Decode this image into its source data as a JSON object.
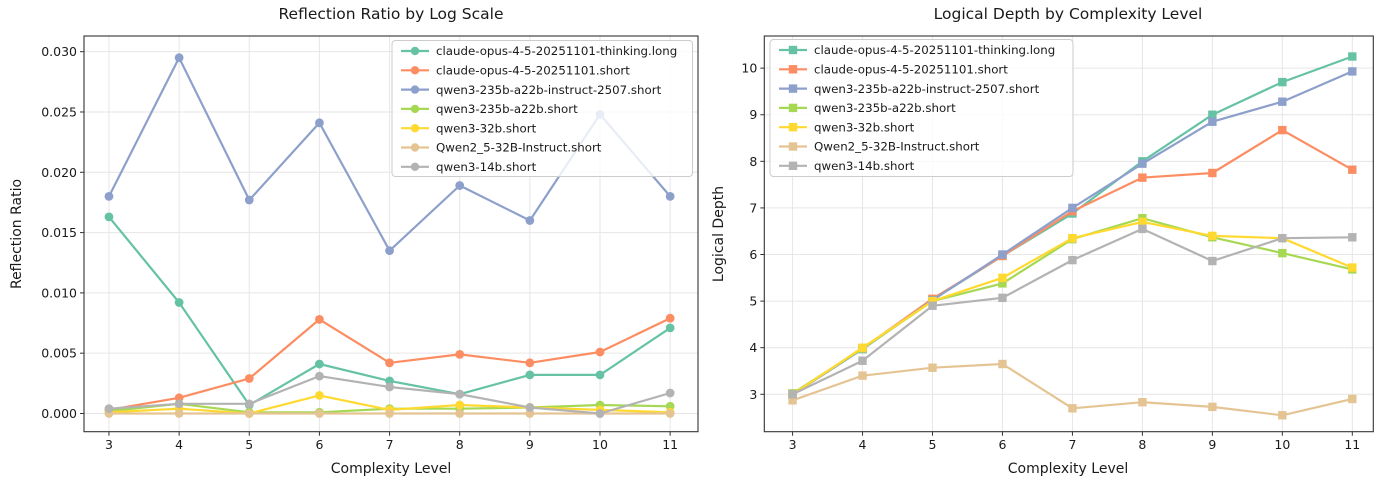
{
  "figure": {
    "background": "#ffffff",
    "text_color": "#1a1a1a",
    "grid_color": "#e6e6e6",
    "spine_color": "#333333",
    "legend_border_color": "#cccccc"
  },
  "chart_data": [
    {
      "type": "line",
      "title": "Reflection Ratio by Log Scale",
      "xlabel": "Complexity Level",
      "ylabel": "Reflection Ratio",
      "grid": true,
      "marker": "o",
      "legend_position": "upper right",
      "x": [
        3,
        4,
        5,
        6,
        7,
        8,
        9,
        10,
        11
      ],
      "xtick_labels": [
        "3",
        "4",
        "5",
        "6",
        "7",
        "8",
        "9",
        "10",
        "11"
      ],
      "yticks": {
        "values": [
          0,
          0.005,
          0.01,
          0.015,
          0.02,
          0.025,
          0.03
        ],
        "labels": [
          "0.000",
          "0.005",
          "0.010",
          "0.015",
          "0.020",
          "0.025",
          "0.030"
        ]
      },
      "xlim": [
        2.644,
        11.397
      ],
      "ylim": [
        -0.00151,
        0.0313
      ],
      "series": [
        {
          "name": "claude-opus-4-5-20251101-thinking.long",
          "color": "#66c2a5",
          "values": [
            0.0163,
            0.0092,
            0.0007,
            0.0041,
            0.0027,
            0.0016,
            0.0032,
            0.0032,
            0.0071
          ]
        },
        {
          "name": "claude-opus-4-5-20251101.short",
          "color": "#fc8d62",
          "values": [
            0.0003,
            0.0013,
            0.0029,
            0.0078,
            0.0042,
            0.0049,
            0.0042,
            0.0051,
            0.0079
          ]
        },
        {
          "name": "qwen3-235b-a22b-instruct-2507.short",
          "color": "#8da0cb",
          "values": [
            0.018,
            0.0295,
            0.0177,
            0.0241,
            0.0135,
            0.0189,
            0.016,
            0.0248,
            0.018
          ]
        },
        {
          "name": "qwen3-235b-a22b.short",
          "color": "#a6d854",
          "values": [
            0.0002,
            0.0008,
            0.0001,
            0.0001,
            0.0004,
            0.0004,
            0.0005,
            0.0007,
            0.0006
          ]
        },
        {
          "name": "qwen3-32b.short",
          "color": "#ffd92f",
          "values": [
            0.0001,
            0.0004,
            0.0,
            0.0015,
            0.0003,
            0.0007,
            0.0005,
            0.0003,
            0.0001
          ]
        },
        {
          "name": "Qwen2_5-32B-Instruct.short",
          "color": "#e5c494",
          "values": [
            0.0,
            0.0,
            0.0,
            0.0,
            0.0,
            0.0,
            0.0,
            0.0,
            0.0
          ]
        },
        {
          "name": "qwen3-14b.short",
          "color": "#b3b3b3",
          "values": [
            0.0004,
            0.0008,
            0.0008,
            0.0031,
            0.0022,
            0.0016,
            0.0005,
            0.0,
            0.0017
          ]
        }
      ]
    },
    {
      "type": "line",
      "title": "Logical Depth by Complexity Level",
      "xlabel": "Complexity Level",
      "ylabel": "Logical Depth",
      "grid": true,
      "marker": "s",
      "legend_position": "upper left",
      "x": [
        3,
        4,
        5,
        6,
        7,
        8,
        9,
        10,
        11
      ],
      "xtick_labels": [
        "3",
        "4",
        "5",
        "6",
        "7",
        "8",
        "9",
        "10",
        "11"
      ],
      "yticks": {
        "values": [
          3,
          4,
          5,
          6,
          7,
          8,
          9,
          10
        ],
        "labels": [
          "3",
          "4",
          "5",
          "6",
          "7",
          "8",
          "9",
          "10"
        ]
      },
      "xlim": [
        2.596,
        11.3
      ],
      "ylim": [
        2.197,
        10.69
      ],
      "series": [
        {
          "name": "claude-opus-4-5-20251101-thinking.long",
          "color": "#66c2a5",
          "values": [
            3.0,
            3.97,
            5.03,
            5.97,
            6.88,
            8.0,
            9.0,
            9.7,
            10.25
          ]
        },
        {
          "name": "claude-opus-4-5-20251101.short",
          "color": "#fc8d62",
          "values": [
            3.0,
            3.98,
            5.05,
            5.97,
            6.93,
            7.65,
            7.75,
            8.67,
            7.82
          ]
        },
        {
          "name": "qwen3-235b-a22b-instruct-2507.short",
          "color": "#8da0cb",
          "values": [
            3.0,
            3.97,
            5.02,
            6.0,
            7.0,
            7.95,
            8.85,
            9.28,
            9.93
          ]
        },
        {
          "name": "qwen3-235b-a22b.short",
          "color": "#a6d854",
          "values": [
            3.02,
            3.98,
            5.0,
            5.38,
            6.33,
            6.78,
            6.37,
            6.03,
            5.68
          ]
        },
        {
          "name": "qwen3-32b.short",
          "color": "#ffd92f",
          "values": [
            3.0,
            4.0,
            5.0,
            5.5,
            6.35,
            6.7,
            6.4,
            6.35,
            5.72
          ]
        },
        {
          "name": "Qwen2_5-32B-Instruct.short",
          "color": "#e5c494",
          "values": [
            2.87,
            3.4,
            3.57,
            3.65,
            2.7,
            2.83,
            2.73,
            2.55,
            2.9
          ]
        },
        {
          "name": "qwen3-14b.short",
          "color": "#b3b3b3",
          "values": [
            3.0,
            3.72,
            4.9,
            5.07,
            5.88,
            6.55,
            5.86,
            6.35,
            6.37
          ]
        }
      ]
    }
  ]
}
